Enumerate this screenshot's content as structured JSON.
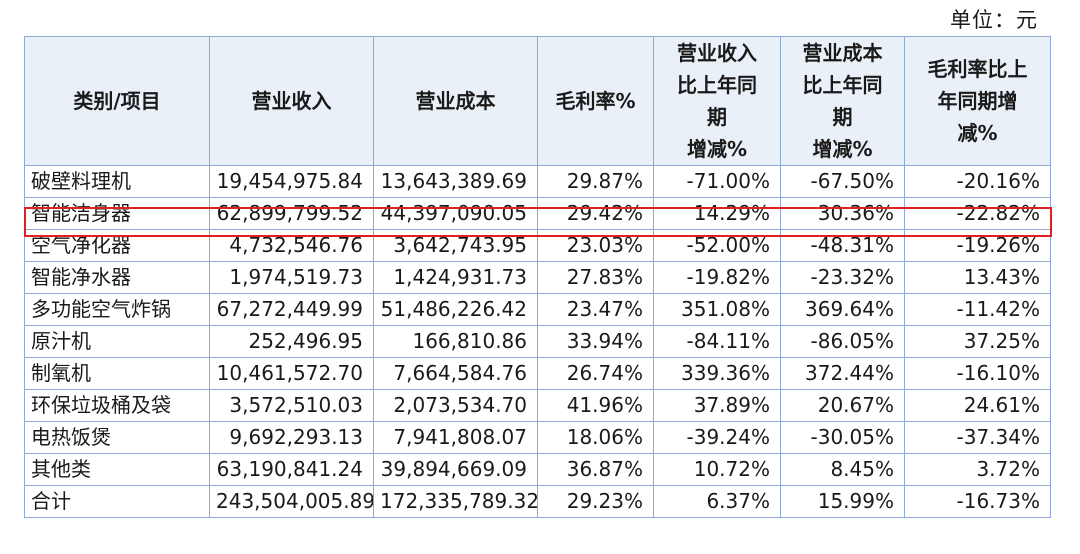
{
  "unit_label": "单位：元",
  "headers": {
    "category": "类别/项目",
    "revenue": "营业收入",
    "cost": "营业成本",
    "margin": "毛利率%",
    "rev_change": [
      "营业收入",
      "比上年同",
      "期",
      "增减%"
    ],
    "cost_change": [
      "营业成本",
      "比上年同",
      "期",
      "增减%"
    ],
    "margin_change": [
      "毛利率比上",
      "年同期增",
      "减%"
    ]
  },
  "rows": [
    {
      "category": "破壁料理机",
      "revenue": "19,454,975.84",
      "cost": "13,643,389.69",
      "margin": "29.87%",
      "rev_change": "-71.00%",
      "cost_change": "-67.50%",
      "margin_change": "-20.16%"
    },
    {
      "category": "智能洁身器",
      "revenue": "62,899,799.52",
      "cost": "44,397,090.05",
      "margin": "29.42%",
      "rev_change": "14.29%",
      "cost_change": "30.36%",
      "margin_change": "-22.82%"
    },
    {
      "category": "空气净化器",
      "revenue": "4,732,546.76",
      "cost": "3,642,743.95",
      "margin": "23.03%",
      "rev_change": "-52.00%",
      "cost_change": "-48.31%",
      "margin_change": "-19.26%"
    },
    {
      "category": "智能净水器",
      "revenue": "1,974,519.73",
      "cost": "1,424,931.73",
      "margin": "27.83%",
      "rev_change": "-19.82%",
      "cost_change": "-23.32%",
      "margin_change": "13.43%"
    },
    {
      "category": "多功能空气炸锅",
      "revenue": "67,272,449.99",
      "cost": "51,486,226.42",
      "margin": "23.47%",
      "rev_change": "351.08%",
      "cost_change": "369.64%",
      "margin_change": "-11.42%"
    },
    {
      "category": "原汁机",
      "revenue": "252,496.95",
      "cost": "166,810.86",
      "margin": "33.94%",
      "rev_change": "-84.11%",
      "cost_change": "-86.05%",
      "margin_change": "37.25%"
    },
    {
      "category": "制氧机",
      "revenue": "10,461,572.70",
      "cost": "7,664,584.76",
      "margin": "26.74%",
      "rev_change": "339.36%",
      "cost_change": "372.44%",
      "margin_change": "-16.10%"
    },
    {
      "category": "环保垃圾桶及袋",
      "revenue": "3,572,510.03",
      "cost": "2,073,534.70",
      "margin": "41.96%",
      "rev_change": "37.89%",
      "cost_change": "20.67%",
      "margin_change": "24.61%"
    },
    {
      "category": "电热饭煲",
      "revenue": "9,692,293.13",
      "cost": "7,941,808.07",
      "margin": "18.06%",
      "rev_change": "-39.24%",
      "cost_change": "-30.05%",
      "margin_change": "-37.34%"
    },
    {
      "category": "其他类",
      "revenue": "63,190,841.24",
      "cost": "39,894,669.09",
      "margin": "36.87%",
      "rev_change": "10.72%",
      "cost_change": "8.45%",
      "margin_change": "3.72%"
    },
    {
      "category": "合计",
      "revenue": "243,504,005.89",
      "cost": "172,335,789.32",
      "margin": "29.23%",
      "rev_change": "6.37%",
      "cost_change": "15.99%",
      "margin_change": "-16.73%"
    }
  ],
  "highlight_color": "#e02020",
  "border_color": "#8ea9d6",
  "header_bg": "#eaf0f8"
}
